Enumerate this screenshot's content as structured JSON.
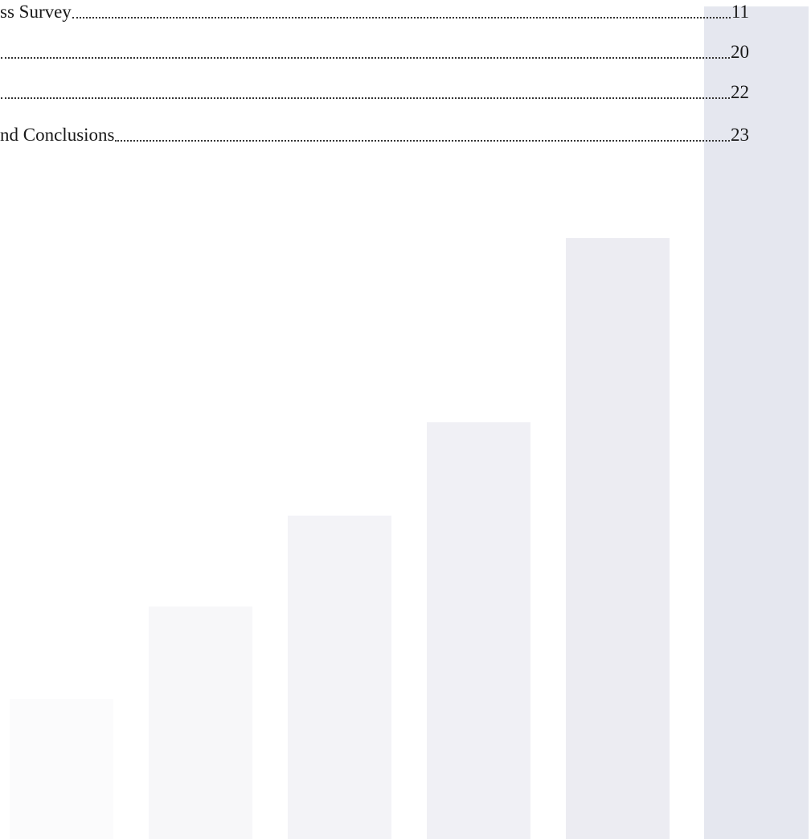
{
  "toc": {
    "entries": [
      {
        "title": "ss Survey",
        "page": "11"
      },
      {
        "page": "20"
      },
      {
        "page": "22"
      },
      {
        "title": "nd Conclusions",
        "page": "23"
      }
    ]
  }
}
